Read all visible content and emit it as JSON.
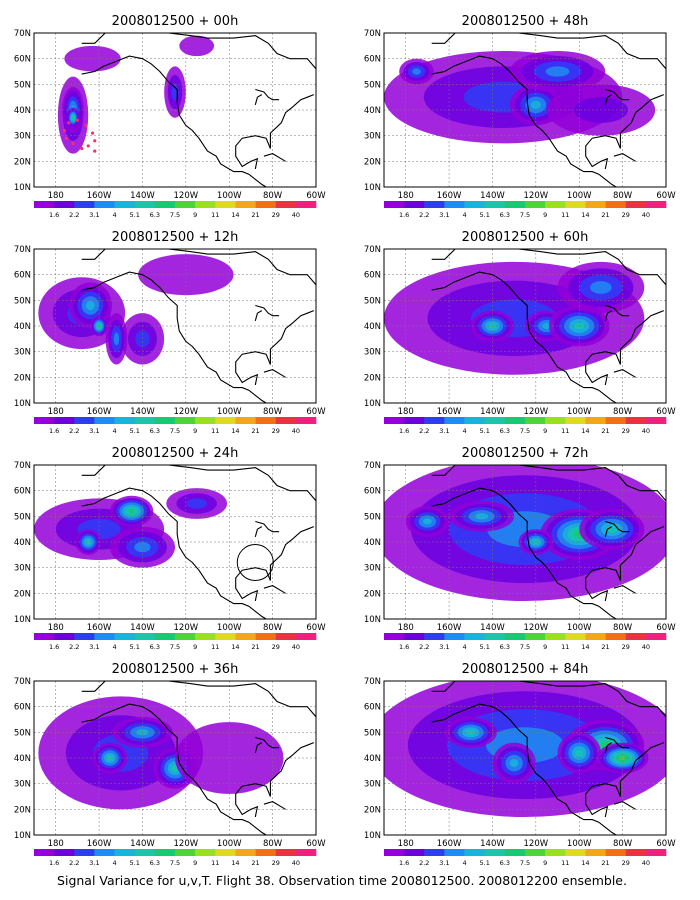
{
  "figure": {
    "caption": "Signal Variance for u,v,T. Flight 38. Observation time 2008012500. 2008012200 ensemble.",
    "panels": [
      {
        "id": "p00",
        "title": "2008012500 + 00h",
        "lead": 0
      },
      {
        "id": "p12",
        "title": "2008012500 + 12h",
        "lead": 12
      },
      {
        "id": "p24",
        "title": "2008012500 + 24h",
        "lead": 24
      },
      {
        "id": "p36",
        "title": "2008012500 + 36h",
        "lead": 36
      },
      {
        "id": "p48",
        "title": "2008012500 + 48h",
        "lead": 48
      },
      {
        "id": "p60",
        "title": "2008012500 + 60h",
        "lead": 60
      },
      {
        "id": "p72",
        "title": "2008012500 + 72h",
        "lead": 72
      },
      {
        "id": "p84",
        "title": "2008012500 + 84h",
        "lead": 84
      }
    ],
    "lat_ticks": [
      "10N",
      "20N",
      "30N",
      "40N",
      "50N",
      "60N",
      "70N"
    ],
    "lon_ticks": [
      "180",
      "160W",
      "140W",
      "120W",
      "100W",
      "80W",
      "60W"
    ],
    "lon_range": [
      -190,
      -60
    ],
    "lat_range": [
      10,
      70
    ],
    "colorbar": {
      "levels": [
        "1.6",
        "2.2",
        "3.1",
        "4",
        "5.1",
        "6.3",
        "7.5",
        "9",
        "11",
        "14",
        "21",
        "29",
        "40"
      ],
      "colors": [
        "#9300d8",
        "#6a00e0",
        "#2f3cf6",
        "#1e8cf0",
        "#19b4d8",
        "#17c8a8",
        "#19c870",
        "#4fd23c",
        "#9be020",
        "#dcdc18",
        "#f0a818",
        "#f07018",
        "#f03040",
        "#f0207c"
      ]
    },
    "colors": {
      "coast": "#000000",
      "grid": "#777777",
      "track": "#ff2a6a"
    }
  }
}
